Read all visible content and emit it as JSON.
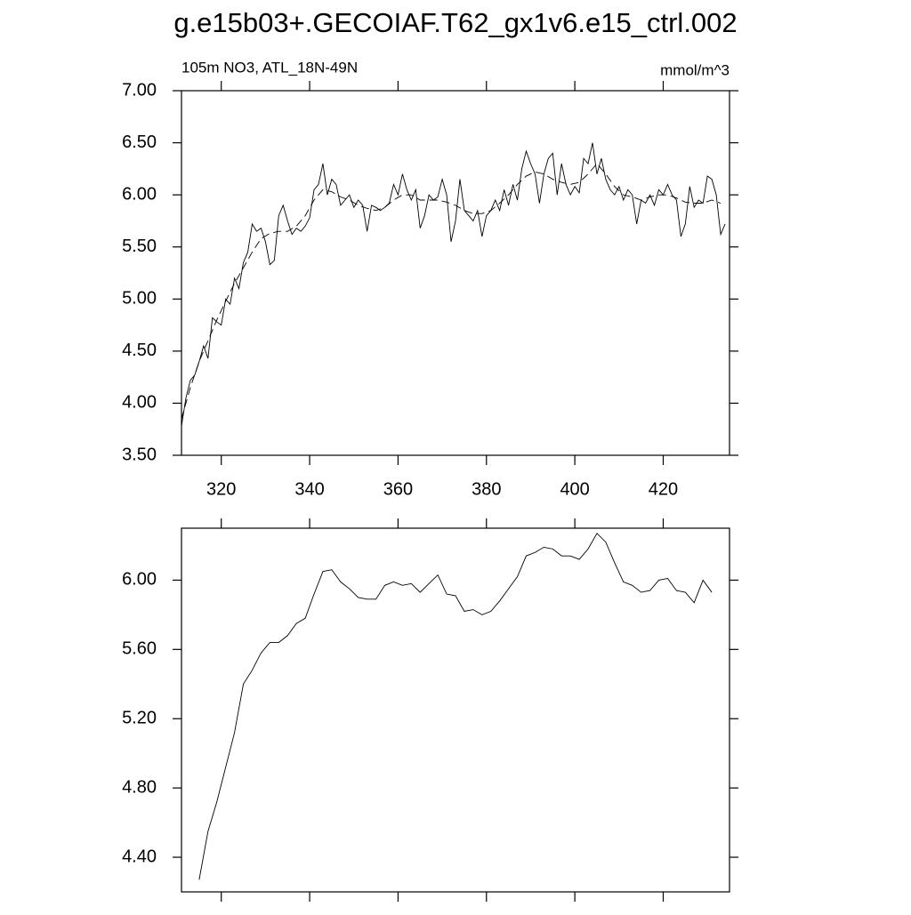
{
  "chart_data": [
    {
      "type": "line",
      "title": "g.e15b03+.GECOIAF.T62_gx1v6.e15_ctrl.002",
      "left_subtitle": "105m NO3, ATL_18N-49N",
      "right_subtitle": "mmol/m^3",
      "xlim": [
        311,
        435
      ],
      "xticks": [
        320,
        340,
        360,
        380,
        400,
        420
      ],
      "xtick_labels": true,
      "ylim": [
        3.5,
        7.0
      ],
      "yticks": [
        {
          "value": 3.5,
          "label": "3.50"
        },
        {
          "value": 4.0,
          "label": "4.00"
        },
        {
          "value": 4.5,
          "label": "4.50"
        },
        {
          "value": 5.0,
          "label": "5.00"
        },
        {
          "value": 5.5,
          "label": "5.50"
        },
        {
          "value": 6.0,
          "label": "6.00"
        },
        {
          "value": 6.5,
          "label": "6.50"
        },
        {
          "value": 7.0,
          "label": "7.00"
        }
      ],
      "series": [
        {
          "color": "#000000",
          "style": "solid",
          "x": [
            311,
            312,
            313,
            314,
            315,
            316,
            317,
            318,
            319,
            320,
            321,
            322,
            323,
            324,
            325,
            326,
            327,
            328,
            329,
            330,
            331,
            332,
            333,
            334,
            335,
            336,
            337,
            338,
            339,
            340,
            341,
            342,
            343,
            344,
            345,
            346,
            347,
            348,
            349,
            350,
            351,
            352,
            353,
            354,
            355,
            356,
            357,
            358,
            359,
            360,
            361,
            362,
            363,
            364,
            365,
            366,
            367,
            368,
            369,
            370,
            371,
            372,
            373,
            374,
            375,
            376,
            377,
            378,
            379,
            380,
            381,
            382,
            383,
            384,
            385,
            386,
            387,
            388,
            389,
            390,
            391,
            392,
            393,
            394,
            395,
            396,
            397,
            398,
            399,
            400,
            401,
            402,
            403,
            404,
            405,
            406,
            407,
            408,
            409,
            410,
            411,
            412,
            413,
            414,
            415,
            416,
            417,
            418,
            419,
            420,
            421,
            422,
            423,
            424,
            425,
            426,
            427,
            428,
            429,
            430,
            431,
            432,
            433,
            434
          ],
          "values": [
            3.78,
            4.05,
            4.22,
            4.27,
            4.4,
            4.55,
            4.43,
            4.82,
            4.78,
            4.75,
            5.0,
            4.95,
            5.2,
            5.1,
            5.35,
            5.45,
            5.72,
            5.65,
            5.68,
            5.55,
            5.33,
            5.37,
            5.8,
            5.9,
            5.75,
            5.62,
            5.68,
            5.65,
            5.7,
            5.78,
            6.05,
            6.1,
            6.3,
            6.0,
            6.15,
            6.1,
            5.9,
            5.95,
            6.0,
            5.88,
            5.95,
            5.9,
            5.65,
            5.9,
            5.88,
            5.85,
            5.88,
            5.92,
            6.1,
            6.0,
            6.2,
            6.05,
            5.95,
            6.05,
            5.68,
            5.8,
            6.0,
            5.95,
            5.98,
            6.15,
            6.0,
            5.55,
            5.75,
            6.15,
            5.85,
            5.8,
            5.75,
            5.85,
            5.6,
            5.8,
            5.85,
            5.95,
            5.85,
            6.05,
            5.9,
            6.1,
            5.95,
            6.25,
            6.42,
            6.3,
            6.2,
            5.92,
            6.2,
            6.35,
            6.4,
            6.0,
            6.3,
            6.1,
            6.0,
            6.08,
            6.02,
            6.35,
            6.3,
            6.5,
            6.2,
            6.35,
            6.15,
            6.05,
            6.0,
            6.08,
            5.95,
            6.05,
            6.0,
            5.72,
            5.95,
            5.92,
            6.0,
            5.9,
            6.05,
            6.0,
            6.1,
            6.0,
            5.95,
            5.6,
            5.72,
            6.08,
            5.88,
            5.95,
            5.92,
            6.18,
            6.15,
            6.0,
            5.62,
            5.72
          ]
        },
        {
          "color": "#000000",
          "style": "dashed",
          "x": [
            311,
            313,
            315,
            317,
            319,
            321,
            323,
            325,
            327,
            329,
            331,
            333,
            335,
            337,
            339,
            341,
            343,
            345,
            347,
            349,
            351,
            353,
            355,
            357,
            359,
            361,
            363,
            365,
            367,
            369,
            371,
            373,
            375,
            377,
            379,
            381,
            383,
            385,
            387,
            389,
            391,
            393,
            395,
            397,
            399,
            401,
            403,
            405,
            407,
            409,
            411,
            413,
            415,
            417,
            419,
            421,
            423,
            425,
            427,
            429,
            431,
            433
          ],
          "values": [
            3.85,
            4.15,
            4.4,
            4.6,
            4.8,
            4.98,
            5.15,
            5.3,
            5.45,
            5.58,
            5.63,
            5.65,
            5.65,
            5.7,
            5.8,
            5.95,
            6.05,
            6.03,
            5.98,
            5.95,
            5.9,
            5.87,
            5.85,
            5.88,
            5.95,
            6.0,
            6.0,
            5.95,
            5.95,
            5.95,
            5.93,
            5.9,
            5.85,
            5.82,
            5.82,
            5.85,
            5.92,
            6.0,
            6.1,
            6.18,
            6.22,
            6.2,
            6.15,
            6.12,
            6.1,
            6.12,
            6.2,
            6.3,
            6.2,
            6.08,
            6.0,
            5.98,
            5.95,
            5.98,
            6.0,
            6.0,
            5.97,
            5.93,
            5.92,
            5.92,
            5.95,
            5.92
          ]
        }
      ]
    },
    {
      "type": "line",
      "xlim": [
        311,
        435
      ],
      "xticks": [
        320,
        340,
        360,
        380,
        400,
        420
      ],
      "xtick_labels": false,
      "ylim": [
        4.2,
        6.3
      ],
      "yticks": [
        {
          "value": 4.4,
          "label": "4.40"
        },
        {
          "value": 4.8,
          "label": "4.80"
        },
        {
          "value": 5.2,
          "label": "5.20"
        },
        {
          "value": 5.6,
          "label": "5.60"
        },
        {
          "value": 6.0,
          "label": "6.00"
        }
      ],
      "series": [
        {
          "color": "#000000",
          "style": "solid",
          "x": [
            315,
            317,
            319,
            321,
            323,
            325,
            327,
            329,
            331,
            333,
            335,
            337,
            339,
            341,
            343,
            345,
            347,
            349,
            351,
            353,
            355,
            357,
            359,
            361,
            363,
            365,
            367,
            369,
            371,
            373,
            375,
            377,
            379,
            381,
            383,
            385,
            387,
            389,
            391,
            393,
            395,
            397,
            399,
            401,
            403,
            405,
            407,
            409,
            411,
            413,
            415,
            417,
            419,
            421,
            423,
            425,
            427,
            429,
            431
          ],
          "values": [
            4.27,
            4.55,
            4.72,
            4.92,
            5.12,
            5.4,
            5.48,
            5.58,
            5.64,
            5.64,
            5.68,
            5.75,
            5.78,
            5.92,
            6.05,
            6.06,
            5.99,
            5.95,
            5.9,
            5.89,
            5.89,
            5.97,
            5.99,
            5.97,
            5.98,
            5.93,
            5.98,
            6.03,
            5.92,
            5.91,
            5.82,
            5.83,
            5.8,
            5.82,
            5.88,
            5.95,
            6.02,
            6.14,
            6.16,
            6.19,
            6.18,
            6.14,
            6.14,
            6.12,
            6.18,
            6.27,
            6.22,
            6.1,
            5.99,
            5.97,
            5.93,
            5.94,
            6.0,
            6.01,
            5.94,
            5.93,
            5.87,
            6.0,
            5.93
          ]
        }
      ]
    }
  ]
}
